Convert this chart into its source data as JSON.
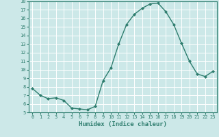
{
  "title": "",
  "xlabel": "Humidex (Indice chaleur)",
  "x_values": [
    0,
    1,
    2,
    3,
    4,
    5,
    6,
    7,
    8,
    9,
    10,
    11,
    12,
    13,
    14,
    15,
    16,
    17,
    18,
    19,
    20,
    21,
    22,
    23
  ],
  "y_values": [
    7.8,
    7.0,
    6.6,
    6.7,
    6.4,
    5.5,
    5.4,
    5.3,
    5.7,
    8.7,
    10.2,
    13.0,
    15.3,
    16.5,
    17.2,
    17.7,
    17.8,
    16.8,
    15.3,
    13.1,
    11.0,
    9.5,
    9.2,
    9.8
  ],
  "ylim": [
    5,
    18
  ],
  "xlim": [
    -0.5,
    23.5
  ],
  "line_color": "#2e7d6e",
  "marker_color": "#2e7d6e",
  "bg_color": "#cce8e8",
  "grid_color": "#ffffff",
  "tick_label_color": "#2e7d6e",
  "axis_label_color": "#2e7d6e",
  "yticks": [
    5,
    6,
    7,
    8,
    9,
    10,
    11,
    12,
    13,
    14,
    15,
    16,
    17,
    18
  ],
  "xticks": [
    0,
    1,
    2,
    3,
    4,
    5,
    6,
    7,
    8,
    9,
    10,
    11,
    12,
    13,
    14,
    15,
    16,
    17,
    18,
    19,
    20,
    21,
    22,
    23
  ]
}
